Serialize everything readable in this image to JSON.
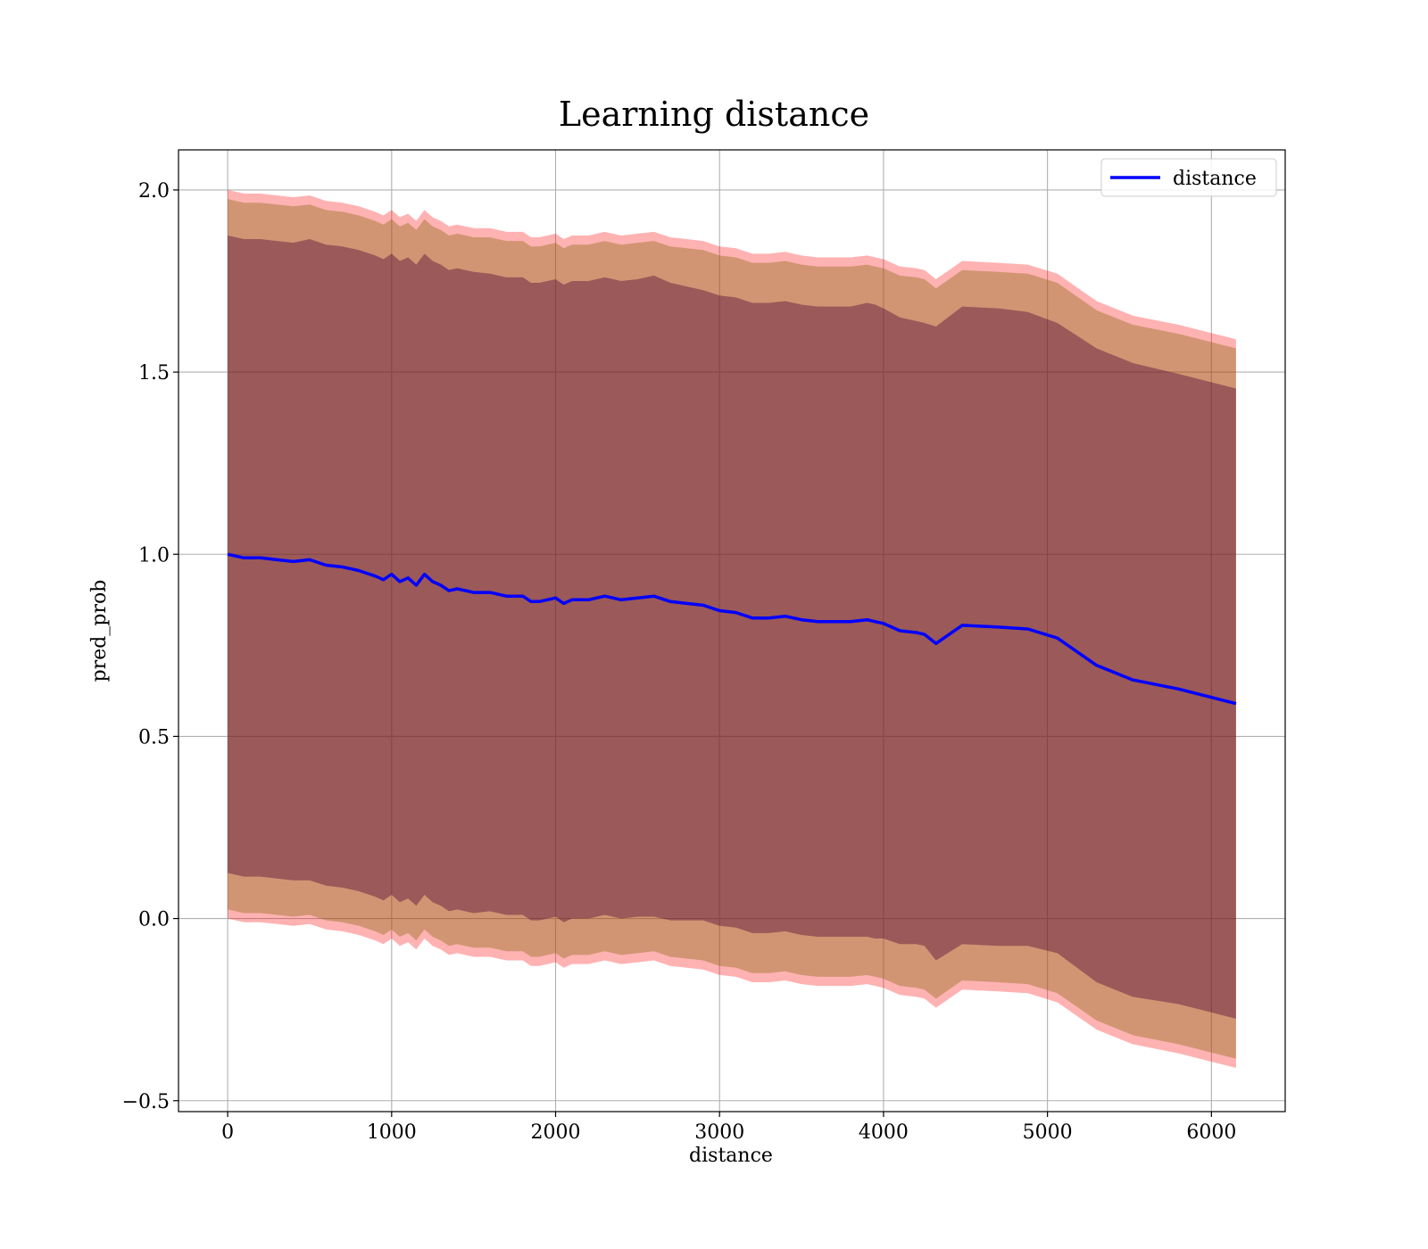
{
  "chart_data": {
    "type": "line",
    "title": "Learning distance",
    "xlabel": "distance",
    "ylabel": "pred_prob",
    "xlim": [
      -300,
      6450
    ],
    "ylim": [
      -0.53,
      2.11
    ],
    "xticks": [
      0,
      1000,
      2000,
      3000,
      4000,
      5000,
      6000
    ],
    "xtick_labels": [
      "0",
      "1000",
      "2000",
      "3000",
      "4000",
      "5000",
      "6000"
    ],
    "yticks": [
      -0.5,
      0.0,
      0.5,
      1.0,
      1.5,
      2.0
    ],
    "ytick_labels": [
      "−0.5",
      "0.0",
      "0.5",
      "1.0",
      "1.5",
      "2.0"
    ],
    "grid": true,
    "legend": {
      "position": "top-right",
      "entries": [
        "distance"
      ]
    },
    "colors": {
      "line": "#0000ff",
      "band_outer": "#ff0000",
      "band_middle": "#8b6914",
      "band_inner": "#4b0033"
    },
    "series": [
      {
        "name": "distance",
        "x": [
          0,
          100,
          200,
          300,
          400,
          500,
          600,
          700,
          800,
          900,
          950,
          1000,
          1050,
          1100,
          1150,
          1200,
          1250,
          1300,
          1350,
          1400,
          1500,
          1600,
          1700,
          1800,
          1850,
          1900,
          1950,
          2000,
          2050,
          2100,
          2200,
          2300,
          2400,
          2500,
          2600,
          2700,
          2800,
          2900,
          3000,
          3100,
          3200,
          3300,
          3400,
          3500,
          3600,
          3700,
          3800,
          3900,
          3950,
          4000,
          4100,
          4200,
          4250,
          4320,
          4480,
          4700,
          4880,
          5060,
          5300,
          5520,
          5800,
          6150
        ],
        "y": [
          1.0,
          0.99,
          0.99,
          0.985,
          0.98,
          0.985,
          0.97,
          0.965,
          0.955,
          0.94,
          0.93,
          0.945,
          0.925,
          0.935,
          0.915,
          0.945,
          0.925,
          0.915,
          0.9,
          0.905,
          0.895,
          0.895,
          0.885,
          0.885,
          0.87,
          0.87,
          0.875,
          0.88,
          0.865,
          0.875,
          0.875,
          0.885,
          0.875,
          0.88,
          0.885,
          0.87,
          0.865,
          0.86,
          0.845,
          0.84,
          0.825,
          0.825,
          0.83,
          0.82,
          0.815,
          0.815,
          0.815,
          0.82,
          0.815,
          0.81,
          0.79,
          0.785,
          0.78,
          0.755,
          0.805,
          0.8,
          0.795,
          0.77,
          0.695,
          0.655,
          0.63,
          0.59
        ]
      }
    ],
    "bands": [
      {
        "name": "outer",
        "upper": [
          2.0,
          1.99,
          1.99,
          1.985,
          1.98,
          1.985,
          1.97,
          1.965,
          1.955,
          1.94,
          1.93,
          1.945,
          1.925,
          1.935,
          1.915,
          1.945,
          1.925,
          1.915,
          1.9,
          1.905,
          1.895,
          1.895,
          1.885,
          1.885,
          1.87,
          1.87,
          1.875,
          1.88,
          1.865,
          1.875,
          1.875,
          1.885,
          1.875,
          1.88,
          1.885,
          1.87,
          1.865,
          1.86,
          1.845,
          1.84,
          1.825,
          1.825,
          1.83,
          1.82,
          1.815,
          1.815,
          1.815,
          1.82,
          1.815,
          1.81,
          1.79,
          1.785,
          1.78,
          1.755,
          1.805,
          1.8,
          1.795,
          1.77,
          1.695,
          1.655,
          1.63,
          1.59
        ],
        "lower": [
          0.0,
          -0.01,
          -0.01,
          -0.015,
          -0.02,
          -0.015,
          -0.03,
          -0.035,
          -0.045,
          -0.06,
          -0.07,
          -0.055,
          -0.075,
          -0.065,
          -0.085,
          -0.055,
          -0.075,
          -0.085,
          -0.1,
          -0.095,
          -0.105,
          -0.105,
          -0.115,
          -0.115,
          -0.13,
          -0.13,
          -0.125,
          -0.12,
          -0.135,
          -0.125,
          -0.125,
          -0.115,
          -0.125,
          -0.12,
          -0.115,
          -0.13,
          -0.135,
          -0.14,
          -0.155,
          -0.16,
          -0.175,
          -0.175,
          -0.17,
          -0.18,
          -0.185,
          -0.185,
          -0.185,
          -0.18,
          -0.185,
          -0.19,
          -0.21,
          -0.215,
          -0.22,
          -0.245,
          -0.195,
          -0.2,
          -0.205,
          -0.23,
          -0.305,
          -0.345,
          -0.37,
          -0.41
        ]
      },
      {
        "name": "middle",
        "upper": [
          1.975,
          1.965,
          1.965,
          1.96,
          1.955,
          1.96,
          1.945,
          1.94,
          1.93,
          1.915,
          1.905,
          1.92,
          1.9,
          1.91,
          1.89,
          1.92,
          1.9,
          1.89,
          1.875,
          1.88,
          1.87,
          1.87,
          1.86,
          1.86,
          1.845,
          1.845,
          1.85,
          1.855,
          1.84,
          1.85,
          1.85,
          1.86,
          1.85,
          1.855,
          1.86,
          1.845,
          1.84,
          1.835,
          1.82,
          1.815,
          1.8,
          1.8,
          1.805,
          1.795,
          1.79,
          1.79,
          1.79,
          1.795,
          1.79,
          1.785,
          1.765,
          1.76,
          1.755,
          1.73,
          1.78,
          1.775,
          1.77,
          1.745,
          1.67,
          1.63,
          1.605,
          1.565
        ],
        "lower": [
          0.025,
          0.015,
          0.015,
          0.01,
          0.005,
          0.01,
          -0.005,
          -0.01,
          -0.02,
          -0.035,
          -0.045,
          -0.03,
          -0.05,
          -0.04,
          -0.06,
          -0.03,
          -0.05,
          -0.06,
          -0.075,
          -0.07,
          -0.08,
          -0.08,
          -0.09,
          -0.09,
          -0.105,
          -0.105,
          -0.1,
          -0.095,
          -0.11,
          -0.1,
          -0.1,
          -0.09,
          -0.1,
          -0.095,
          -0.09,
          -0.105,
          -0.11,
          -0.115,
          -0.13,
          -0.135,
          -0.15,
          -0.15,
          -0.145,
          -0.155,
          -0.16,
          -0.16,
          -0.16,
          -0.155,
          -0.16,
          -0.165,
          -0.185,
          -0.19,
          -0.195,
          -0.22,
          -0.17,
          -0.175,
          -0.18,
          -0.205,
          -0.28,
          -0.32,
          -0.345,
          -0.385
        ]
      },
      {
        "name": "inner",
        "upper": [
          1.875,
          1.865,
          1.865,
          1.86,
          1.855,
          1.865,
          1.85,
          1.845,
          1.835,
          1.82,
          1.81,
          1.825,
          1.805,
          1.815,
          1.795,
          1.825,
          1.805,
          1.795,
          1.78,
          1.785,
          1.775,
          1.77,
          1.76,
          1.76,
          1.745,
          1.745,
          1.75,
          1.755,
          1.74,
          1.75,
          1.75,
          1.76,
          1.75,
          1.755,
          1.765,
          1.745,
          1.735,
          1.725,
          1.71,
          1.705,
          1.69,
          1.69,
          1.695,
          1.685,
          1.68,
          1.68,
          1.68,
          1.69,
          1.685,
          1.675,
          1.65,
          1.64,
          1.635,
          1.625,
          1.68,
          1.675,
          1.665,
          1.635,
          1.565,
          1.525,
          1.495,
          1.455
        ],
        "lower": [
          0.125,
          0.115,
          0.115,
          0.11,
          0.105,
          0.105,
          0.09,
          0.085,
          0.075,
          0.06,
          0.05,
          0.065,
          0.045,
          0.055,
          0.035,
          0.065,
          0.045,
          0.035,
          0.02,
          0.025,
          0.015,
          0.02,
          0.01,
          0.01,
          -0.005,
          -0.005,
          0.0,
          0.005,
          -0.01,
          0.0,
          0.0,
          0.01,
          0.0,
          0.005,
          0.005,
          -0.005,
          -0.005,
          -0.005,
          -0.02,
          -0.025,
          -0.04,
          -0.04,
          -0.035,
          -0.045,
          -0.05,
          -0.05,
          -0.05,
          -0.05,
          -0.055,
          -0.055,
          -0.07,
          -0.07,
          -0.075,
          -0.115,
          -0.07,
          -0.075,
          -0.075,
          -0.095,
          -0.175,
          -0.215,
          -0.235,
          -0.275
        ]
      }
    ]
  }
}
